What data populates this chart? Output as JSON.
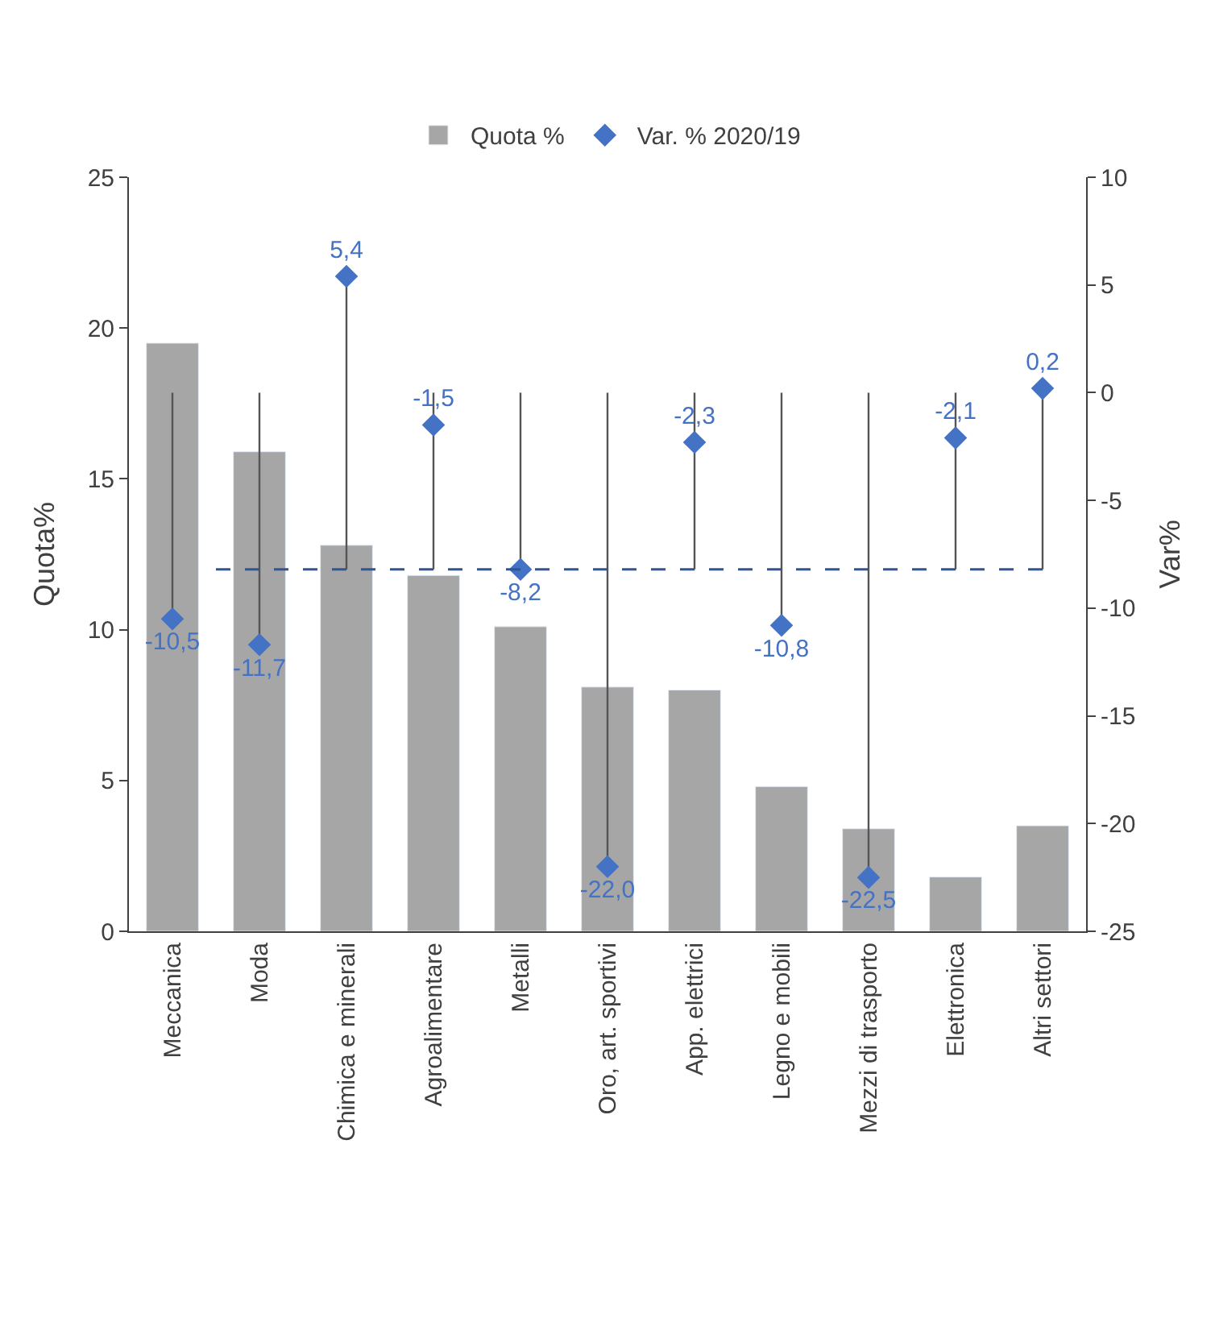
{
  "chart_data": {
    "type": "bar",
    "categories": [
      "Meccanica",
      "Moda",
      "Chimica e minerali",
      "Agroalimentare",
      "Metalli",
      "Oro, art. sportivi",
      "App. elettrici",
      "Legno e mobili",
      "Mezzi di trasporto",
      "Elettronica",
      "Altri settori"
    ],
    "series": [
      {
        "name": "Quota %",
        "type": "bar",
        "color": "#a6a6a6",
        "values": [
          19.5,
          15.9,
          12.8,
          11.8,
          10.1,
          8.1,
          8.0,
          4.8,
          3.4,
          1.8,
          3.5
        ]
      },
      {
        "name": "Var. % 2020/19",
        "type": "scatter",
        "axis": "y2",
        "color": "#4472c4",
        "marker": "diamond",
        "values": [
          -10.5,
          -11.7,
          5.4,
          -1.5,
          -8.2,
          -22.0,
          -2.3,
          -10.8,
          -22.5,
          -2.1,
          0.2
        ],
        "value_labels": [
          "-10,5",
          "-11,7",
          "5,4",
          "-1,5",
          "-8,2",
          "-22,0",
          "-2,3",
          "-10,8",
          "-22,5",
          "-2,1",
          "0,2"
        ],
        "errors": [
          [
            -10.5,
            0
          ],
          [
            -11.7,
            0
          ],
          [
            -8.2,
            5.4
          ],
          [
            -8.2,
            0
          ],
          [
            -8.2,
            0
          ],
          [
            -22.0,
            0
          ],
          [
            -8.2,
            0
          ],
          [
            -10.8,
            0
          ],
          [
            -22.5,
            0
          ],
          [
            -8.2,
            0
          ],
          [
            -8.2,
            0.2
          ]
        ]
      }
    ],
    "ylabel": "Quota%",
    "y2label": "Var%",
    "ylim": [
      0,
      25
    ],
    "yticks": [
      0,
      5,
      10,
      15,
      20,
      25
    ],
    "y2lim": [
      -25,
      10
    ],
    "y2ticks": [
      -25,
      -20,
      -15,
      -10,
      -5,
      0,
      5,
      10
    ],
    "ref_lines": [
      {
        "axis": "y2",
        "value": -8.2,
        "color": "#2f5597",
        "line_style": "dashed"
      }
    ],
    "legend": "top"
  }
}
